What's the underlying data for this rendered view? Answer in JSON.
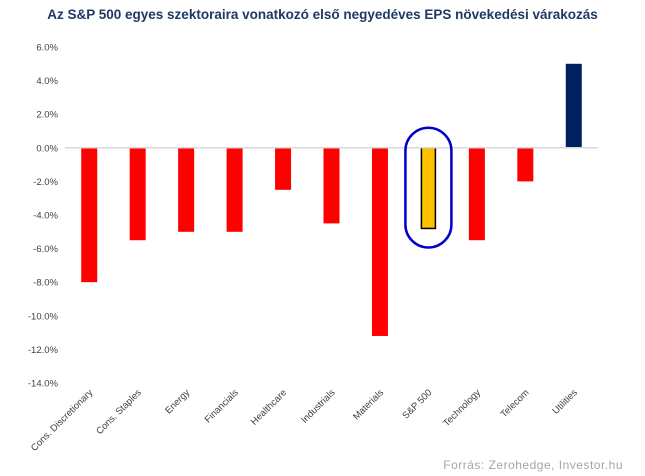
{
  "chart_data": {
    "type": "bar",
    "title": "Az S&P 500 egyes szektoraira vonatkozó első negyedéves EPS növekedési várakozás",
    "categories": [
      "Cons. Discretionary",
      "Cons. Staples",
      "Energy",
      "Financials",
      "Healthcare",
      "Industrials",
      "Materials",
      "S&P 500",
      "Technology",
      "Telecom",
      "Utilities"
    ],
    "values": [
      -8.0,
      -5.5,
      -5.0,
      -5.0,
      -2.5,
      -4.5,
      -11.2,
      -4.8,
      -5.5,
      -2.0,
      5.0
    ],
    "ylim": [
      -14.0,
      6.0
    ],
    "yticks": [
      6.0,
      4.0,
      2.0,
      0.0,
      -2.0,
      -4.0,
      -6.0,
      -8.0,
      -10.0,
      -12.0,
      -14.0
    ],
    "ytick_labels": [
      "6.0%",
      "4.0%",
      "2.0%",
      "0.0%",
      "-2.0%",
      "-4.0%",
      "-6.0%",
      "-8.0%",
      "-10.0%",
      "-12.0%",
      "-14.0%"
    ],
    "xlabel": "",
    "ylabel": "",
    "grid": false,
    "legend": "none",
    "highlighted_category": "S&P 500",
    "colors": {
      "negative": "#ff0000",
      "positive": "#002060",
      "highlight_fill": "#ffc000",
      "highlight_stroke": "#000000",
      "highlight_ring": "#0000cc",
      "axis_labels": "#404040",
      "title": "#1f3864"
    }
  },
  "source_note": "Forrás: Zerohedge, Investor.hu"
}
